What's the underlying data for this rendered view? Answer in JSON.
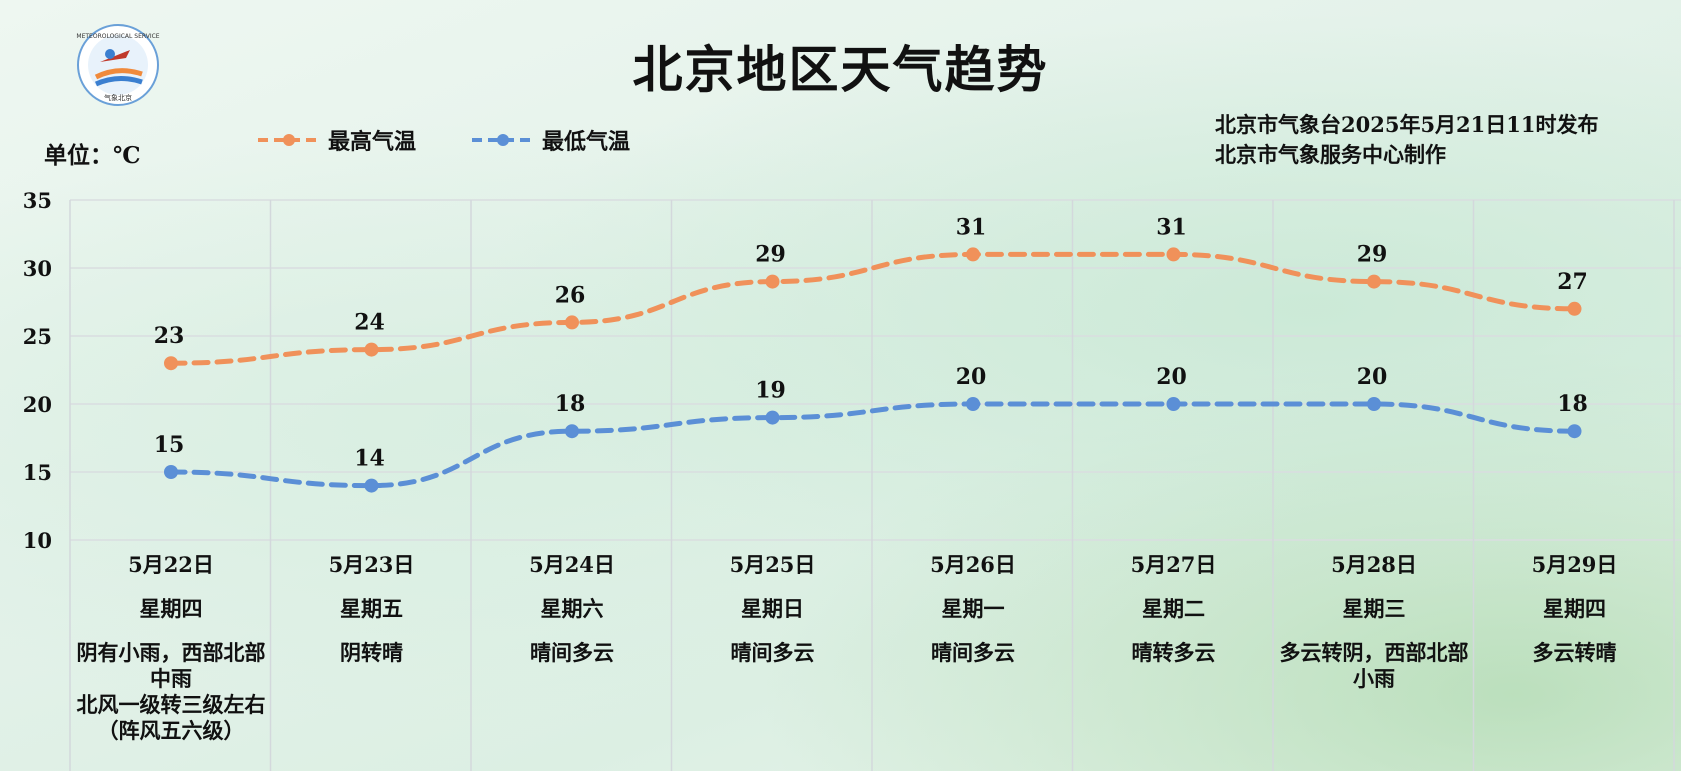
{
  "title": "北京地区天气趋势",
  "unit_label": "单位：℃",
  "legend": [
    {
      "label": "最高气温",
      "color": "#F0915A"
    },
    {
      "label": "最低气温",
      "color": "#5B8FD6"
    }
  ],
  "issuer": {
    "line1": "北京市气象台2025年5月21日11时发布",
    "line2": "北京市气象服务中心制作"
  },
  "logo": {
    "icon": "meteorological-service-logo",
    "ring_text": "METEOROLOGICAL SERVICE",
    "bottom_text": "气象北京"
  },
  "days": [
    {
      "date": "5月22日",
      "weekday": "星期四",
      "condition": "阴有小雨，西部北部中雨",
      "wind": "北风一级转三级左右（阵风五六级）"
    },
    {
      "date": "5月23日",
      "weekday": "星期五",
      "condition": "阴转晴",
      "wind": ""
    },
    {
      "date": "5月24日",
      "weekday": "星期六",
      "condition": "晴间多云",
      "wind": ""
    },
    {
      "date": "5月25日",
      "weekday": "星期日",
      "condition": "晴间多云",
      "wind": ""
    },
    {
      "date": "5月26日",
      "weekday": "星期一",
      "condition": "晴间多云",
      "wind": ""
    },
    {
      "date": "5月27日",
      "weekday": "星期二",
      "condition": "晴转多云",
      "wind": ""
    },
    {
      "date": "5月28日",
      "weekday": "星期三",
      "condition": "多云转阴，西部北部小雨",
      "wind": ""
    },
    {
      "date": "5月29日",
      "weekday": "星期四",
      "condition": "多云转晴",
      "wind": ""
    }
  ],
  "chart_data": {
    "type": "line",
    "title": "北京地区天气趋势",
    "categories": [
      "5月22日",
      "5月23日",
      "5月24日",
      "5月25日",
      "5月26日",
      "5月27日",
      "5月28日",
      "5月29日"
    ],
    "series": [
      {
        "name": "最高气温",
        "color": "#F0915A",
        "values": [
          23,
          24,
          26,
          29,
          31,
          31,
          29,
          27
        ]
      },
      {
        "name": "最低气温",
        "color": "#5B8FD6",
        "values": [
          15,
          14,
          18,
          19,
          20,
          20,
          20,
          18
        ]
      }
    ],
    "ylabel": "单位：℃",
    "ylim": [
      10,
      35
    ],
    "yticks": [
      10,
      15,
      20,
      25,
      30,
      35
    ],
    "grid": true,
    "legend_position": "top-left",
    "line_style": "dashed"
  }
}
